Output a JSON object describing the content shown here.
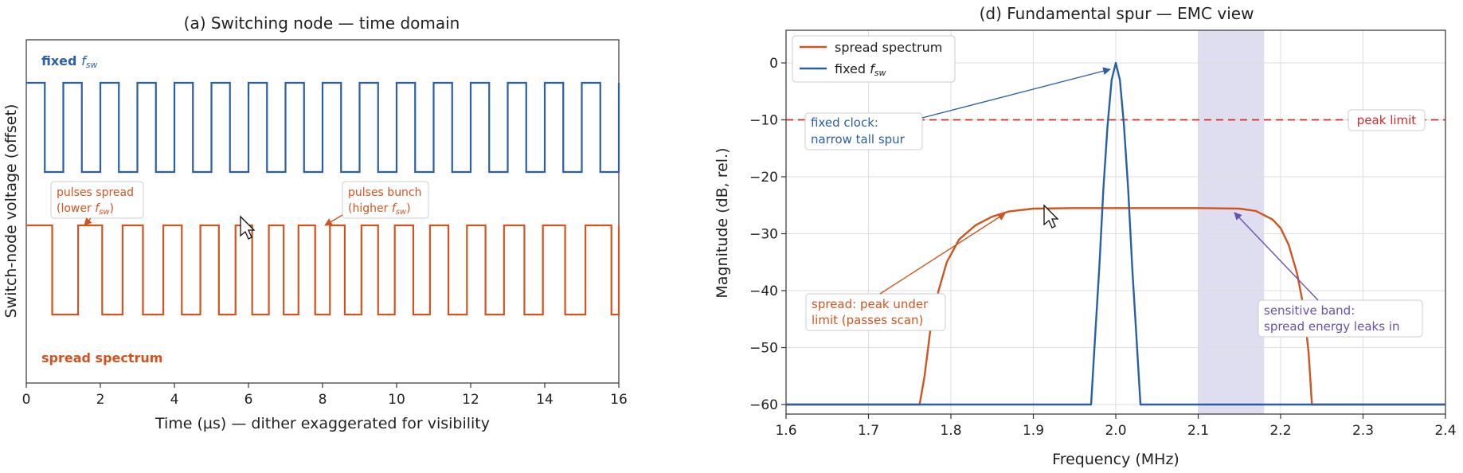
{
  "colors": {
    "fixed": "#2a5fa8",
    "spread": "#d0541f",
    "limit": "#d62728",
    "band": "#c9c6e6",
    "band_text": "#6a4fb0",
    "grid": "#dddddd"
  },
  "chart_data": [
    {
      "type": "line",
      "title": "(a) Switching node — time domain",
      "xlabel": "Time (µs) — dither exaggerated for visibility",
      "ylabel": "Switch-node voltage (offset)",
      "xlim": [
        0,
        16
      ],
      "xticks": [
        "0",
        "2",
        "4",
        "6",
        "8",
        "10",
        "12",
        "14",
        "16"
      ],
      "grid": false,
      "series": [
        {
          "name_main": "fixed ",
          "name_sym": "f",
          "name_sub": "sw",
          "high": 1,
          "low": 0,
          "pulses": [
            [
              0.0,
              0.5
            ],
            [
              1.0,
              1.5
            ],
            [
              2.0,
              2.5
            ],
            [
              3.0,
              3.5
            ],
            [
              4.0,
              4.5
            ],
            [
              5.0,
              5.5
            ],
            [
              6.0,
              6.5
            ],
            [
              7.0,
              7.5
            ],
            [
              8.0,
              8.5
            ],
            [
              9.0,
              9.5
            ],
            [
              10.0,
              10.5
            ],
            [
              11.0,
              11.5
            ],
            [
              12.0,
              12.5
            ],
            [
              13.0,
              13.5
            ],
            [
              14.0,
              14.5
            ],
            [
              15.0,
              15.5
            ]
          ]
        },
        {
          "name": "spread spectrum",
          "high": 1,
          "low": 0,
          "pulses": [
            [
              0.0,
              0.7
            ],
            [
              1.4,
              2.05
            ],
            [
              2.6,
              3.15
            ],
            [
              3.7,
              4.2
            ],
            [
              4.7,
              5.2
            ],
            [
              5.65,
              6.1
            ],
            [
              6.55,
              6.95
            ],
            [
              7.35,
              7.8
            ],
            [
              8.2,
              8.6
            ],
            [
              9.05,
              9.5
            ],
            [
              9.95,
              10.45
            ],
            [
              10.9,
              11.4
            ],
            [
              11.9,
              12.4
            ],
            [
              12.9,
              13.45
            ],
            [
              13.95,
              14.55
            ],
            [
              15.1,
              15.8
            ]
          ]
        }
      ],
      "annotations": [
        {
          "line1": "pulses spread",
          "line2_main": "(lower ",
          "line2_sym": "f",
          "line2_sub": "sw",
          "line2_end": ")"
        },
        {
          "line1": "pulses bunch",
          "line2_main": "(higher ",
          "line2_sym": "f",
          "line2_sub": "sw",
          "line2_end": ")"
        }
      ]
    },
    {
      "type": "line",
      "title": "(d) Fundamental spur — EMC view",
      "xlabel": "Frequency (MHz)",
      "ylabel": "Magnitude (dB, rel.)",
      "xlim": [
        1.6,
        2.4
      ],
      "ylim": [
        -61,
        5
      ],
      "xticks": [
        "1.6",
        "1.7",
        "1.8",
        "1.9",
        "2.0",
        "2.1",
        "2.2",
        "2.3",
        "2.4"
      ],
      "yticks": [
        "0",
        "−10",
        "−20",
        "−30",
        "−40",
        "−50",
        "−60"
      ],
      "grid": true,
      "legend_position": "top-left",
      "series": [
        {
          "name": "spread spectrum",
          "points": [
            [
              1.6,
              -60
            ],
            [
              1.762,
              -60
            ],
            [
              1.768,
              -55
            ],
            [
              1.775,
              -47
            ],
            [
              1.785,
              -40
            ],
            [
              1.795,
              -35
            ],
            [
              1.81,
              -31
            ],
            [
              1.83,
              -28.5
            ],
            [
              1.85,
              -27
            ],
            [
              1.87,
              -26.1
            ],
            [
              1.9,
              -25.6
            ],
            [
              1.95,
              -25.5
            ],
            [
              2.0,
              -25.5
            ],
            [
              2.1,
              -25.5
            ],
            [
              2.15,
              -25.6
            ],
            [
              2.17,
              -26
            ],
            [
              2.19,
              -27.5
            ],
            [
              2.2,
              -29
            ],
            [
              2.21,
              -32
            ],
            [
              2.22,
              -37
            ],
            [
              2.228,
              -43
            ],
            [
              2.234,
              -51
            ],
            [
              2.238,
              -60
            ],
            [
              2.4,
              -60
            ]
          ]
        },
        {
          "name_main": "fixed ",
          "name_sym": "f",
          "name_sub": "sw",
          "points": [
            [
              1.6,
              -60
            ],
            [
              1.97,
              -60
            ],
            [
              1.975,
              -48
            ],
            [
              1.98,
              -36
            ],
            [
              1.985,
              -22
            ],
            [
              1.99,
              -11
            ],
            [
              1.995,
              -3
            ],
            [
              2.0,
              0
            ],
            [
              2.005,
              -3
            ],
            [
              2.01,
              -11
            ],
            [
              2.015,
              -22
            ],
            [
              2.02,
              -36
            ],
            [
              2.025,
              -48
            ],
            [
              2.03,
              -60
            ],
            [
              2.4,
              -60
            ]
          ]
        }
      ],
      "peak_limit": {
        "value": -10,
        "label": "peak limit"
      },
      "sensitive_band": [
        2.1,
        2.18
      ],
      "annotations": [
        {
          "line1": "fixed clock:",
          "line2": "narrow tall spur"
        },
        {
          "line1": "spread: peak under",
          "line2": "limit (passes scan)"
        },
        {
          "line1": "sensitive band:",
          "line2": "spread energy leaks in"
        }
      ]
    }
  ]
}
